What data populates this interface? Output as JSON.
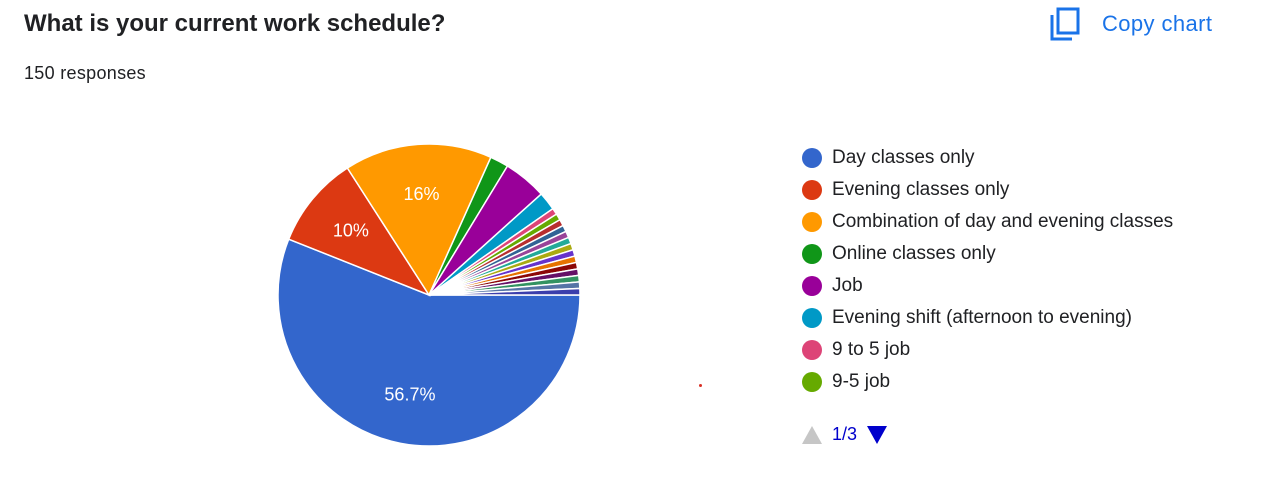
{
  "header": {
    "title": "What is your current work schedule?",
    "responses": "150 responses",
    "copy_label": "Copy chart",
    "copy_icon": "copy-icon"
  },
  "pager": {
    "text": "1/3",
    "prev_icon": "triangle-up-icon",
    "next_icon": "triangle-down-icon"
  },
  "chart_data": {
    "type": "pie",
    "title": "What is your current work schedule?",
    "total_responses": 150,
    "slices": [
      {
        "name": "Day classes only",
        "value": 56.7,
        "label": "56.7%",
        "color": "#3366cc"
      },
      {
        "name": "Evening classes only",
        "value": 10,
        "label": "10%",
        "color": "#dc3912"
      },
      {
        "name": "Combination of day and evening classes",
        "value": 16,
        "label": "16%",
        "color": "#ff9900"
      },
      {
        "name": "Online classes only",
        "value": 2,
        "label": "",
        "color": "#109618"
      },
      {
        "name": "Job",
        "value": 4.7,
        "label": "",
        "color": "#990099"
      },
      {
        "name": "Evening shift (afternoon to evening)",
        "value": 2,
        "label": "",
        "color": "#0099c6"
      },
      {
        "name": "9 to 5 job",
        "value": 0.7,
        "label": "",
        "color": "#dd4477"
      },
      {
        "name": "9-5 job",
        "value": 0.7,
        "label": "",
        "color": "#66aa00"
      },
      {
        "name": "",
        "value": 0.7,
        "label": "",
        "color": "#b82e2e"
      },
      {
        "name": "",
        "value": 0.7,
        "label": "",
        "color": "#316395"
      },
      {
        "name": "",
        "value": 0.7,
        "label": "",
        "color": "#994499"
      },
      {
        "name": "",
        "value": 0.7,
        "label": "",
        "color": "#22aa99"
      },
      {
        "name": "",
        "value": 0.7,
        "label": "",
        "color": "#aaaa11"
      },
      {
        "name": "",
        "value": 0.7,
        "label": "",
        "color": "#6633cc"
      },
      {
        "name": "",
        "value": 0.7,
        "label": "",
        "color": "#e67300"
      },
      {
        "name": "",
        "value": 0.7,
        "label": "",
        "color": "#8b0707"
      },
      {
        "name": "",
        "value": 0.7,
        "label": "",
        "color": "#651067"
      },
      {
        "name": "",
        "value": 0.7,
        "label": "",
        "color": "#329262"
      },
      {
        "name": "",
        "value": 0.7,
        "label": "",
        "color": "#5574a6"
      },
      {
        "name": "",
        "value": 0.7,
        "label": "",
        "color": "#3b3eac"
      }
    ],
    "legend_visible": [
      "Day classes only",
      "Evening classes only",
      "Combination of day and evening classes",
      "Online classes only",
      "Job",
      "Evening shift (afternoon to evening)",
      "9 to 5 job",
      "9-5 job"
    ],
    "legend_position": "right"
  }
}
